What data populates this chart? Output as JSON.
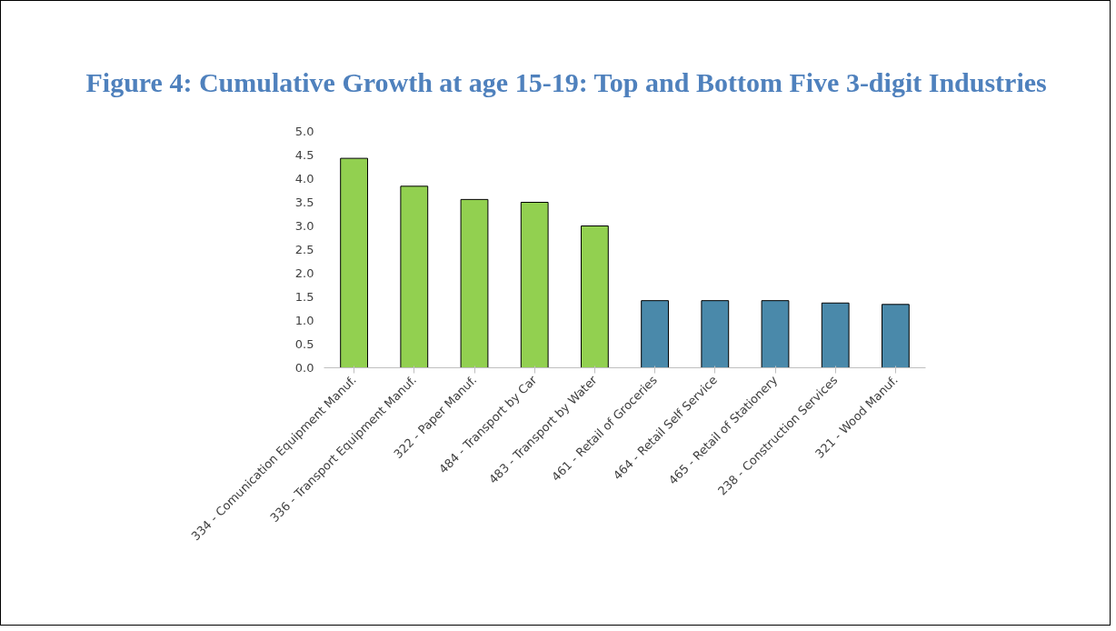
{
  "chart_data": {
    "type": "bar",
    "title": "Figure 4: Cumulative Growth at age 15-19: Top and Bottom Five 3-digit Industries",
    "categories": [
      "334 - Comunication Equipment Manuf.",
      "336 - Transport Equipment Manuf.",
      "322 - Paper Manuf.",
      "484 - Transport by Car",
      "483 - Transport by Water",
      "461 - Retail of Groceries",
      "464 - Retail Self Service",
      "465 - Retail of Stationery",
      "238 - Construction Services",
      "321 - Wood Manuf."
    ],
    "values": [
      4.43,
      3.84,
      3.56,
      3.5,
      3.0,
      1.42,
      1.42,
      1.42,
      1.37,
      1.34
    ],
    "colors": [
      "#92d050",
      "#92d050",
      "#92d050",
      "#92d050",
      "#92d050",
      "#4a89aa",
      "#4a89aa",
      "#4a89aa",
      "#4a89aa",
      "#4a89aa"
    ],
    "ylim": [
      0,
      5
    ],
    "yticks": [
      {
        "value": 0,
        "label": "0.0"
      },
      {
        "value": 0.5,
        "label": "0.5"
      },
      {
        "value": 1,
        "label": "1.0"
      },
      {
        "value": 1.5,
        "label": "1.5"
      },
      {
        "value": 2,
        "label": "2.0"
      },
      {
        "value": 2.5,
        "label": "2.5"
      },
      {
        "value": 3,
        "label": "3.0"
      },
      {
        "value": 3.5,
        "label": "3.5"
      },
      {
        "value": 4,
        "label": "4.0"
      },
      {
        "value": 4.5,
        "label": "4.5"
      },
      {
        "value": 5,
        "label": "5.0"
      }
    ],
    "grid": false
  }
}
